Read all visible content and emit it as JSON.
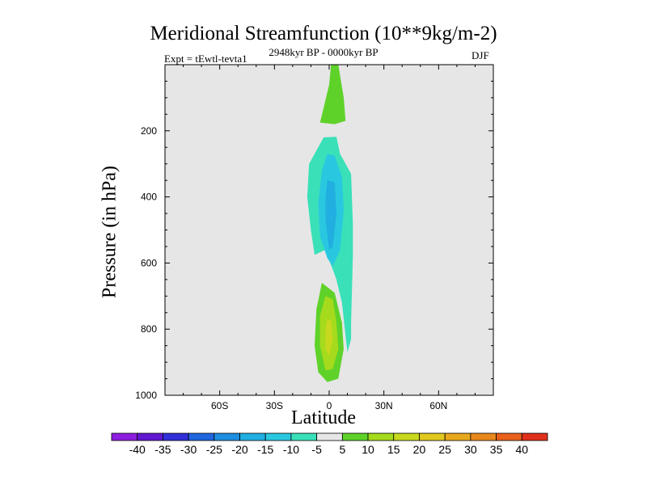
{
  "chart_data": {
    "type": "contour",
    "title": "Meridional Streamfunction (10**9kg/m-2)",
    "subtitle_left": "Expt = tEwtl-tevta1",
    "subtitle_center": "2948kyr BP - 0000kyr BP",
    "subtitle_right": "DJF",
    "xlabel": "Latitude",
    "ylabel": "Pressure (in hPa)",
    "xlim": [
      -90,
      90
    ],
    "ylim": [
      0,
      1000
    ],
    "y_reversed": true,
    "xticks": [
      -60,
      -30,
      0,
      30,
      60
    ],
    "xtick_labels": [
      "60S",
      "30S",
      "0",
      "30N",
      "60N"
    ],
    "yticks": [
      200,
      400,
      600,
      800,
      1000
    ],
    "ytick_labels": [
      "200",
      "400",
      "600",
      "800",
      "1000"
    ],
    "background_color": "#e6e6e6",
    "regions": [
      {
        "name": "upper-positive",
        "level": 5,
        "color": "#5fd22a",
        "points": [
          [
            1,
            0
          ],
          [
            5,
            0
          ],
          [
            8,
            100
          ],
          [
            9,
            170
          ],
          [
            3,
            180
          ],
          [
            -5,
            175
          ],
          [
            -3,
            130
          ],
          [
            0,
            60
          ]
        ]
      },
      {
        "name": "mid-negative-outer",
        "level": -5,
        "color": "#3ae0b8",
        "points": [
          [
            -3,
            220
          ],
          [
            4,
            218
          ],
          [
            6,
            270
          ],
          [
            12,
            330
          ],
          [
            13,
            480
          ],
          [
            13,
            580
          ],
          [
            12,
            780
          ],
          [
            12,
            830
          ],
          [
            10,
            870
          ],
          [
            9,
            820
          ],
          [
            7,
            720
          ],
          [
            4,
            650
          ],
          [
            -2,
            560
          ],
          [
            -8,
            575
          ],
          [
            -10,
            500
          ],
          [
            -12,
            400
          ],
          [
            -11,
            300
          ],
          [
            -7,
            260
          ]
        ]
      },
      {
        "name": "mid-negative-mid",
        "level": -10,
        "color": "#29c8e0",
        "points": [
          [
            -1,
            270
          ],
          [
            3,
            275
          ],
          [
            7,
            340
          ],
          [
            8,
            440
          ],
          [
            6,
            560
          ],
          [
            2,
            610
          ],
          [
            -1,
            585
          ],
          [
            -5,
            520
          ],
          [
            -6,
            420
          ],
          [
            -4,
            320
          ]
        ]
      },
      {
        "name": "mid-negative-core",
        "level": -15,
        "color": "#21aee0",
        "points": [
          [
            -1,
            350
          ],
          [
            3,
            355
          ],
          [
            4,
            450
          ],
          [
            2,
            550
          ],
          [
            0,
            560
          ],
          [
            -2,
            470
          ],
          [
            -2,
            400
          ]
        ]
      },
      {
        "name": "lower-positive-outer",
        "level": 5,
        "color": "#5fd22a",
        "points": [
          [
            -4,
            660
          ],
          [
            3,
            690
          ],
          [
            7,
            780
          ],
          [
            8,
            860
          ],
          [
            5,
            950
          ],
          [
            -1,
            960
          ],
          [
            -6,
            930
          ],
          [
            -8,
            850
          ],
          [
            -7,
            740
          ]
        ]
      },
      {
        "name": "lower-positive-inner",
        "level": 10,
        "color": "#a5db1c",
        "points": [
          [
            -2,
            700
          ],
          [
            2,
            710
          ],
          [
            4,
            780
          ],
          [
            5,
            860
          ],
          [
            2,
            920
          ],
          [
            -2,
            925
          ],
          [
            -5,
            850
          ],
          [
            -5,
            760
          ]
        ]
      },
      {
        "name": "lower-positive-core",
        "level": 15,
        "color": "#c8d81e",
        "points": [
          [
            -1,
            770
          ],
          [
            1,
            775
          ],
          [
            2,
            830
          ],
          [
            0,
            880
          ],
          [
            -2,
            860
          ],
          [
            -2,
            800
          ]
        ]
      }
    ],
    "colorbar": {
      "levels": [
        -40,
        -35,
        -30,
        -25,
        -20,
        -15,
        -10,
        -5,
        5,
        10,
        15,
        20,
        25,
        30,
        35,
        40
      ],
      "labels": [
        "-40",
        "-35",
        "-30",
        "-25",
        "-20",
        "-15",
        "-10",
        "-5",
        "5",
        "10",
        "15",
        "20",
        "25",
        "30",
        "35",
        "40"
      ],
      "colors": [
        "#8d1ee0",
        "#6018d0",
        "#3130d8",
        "#2066e0",
        "#1e8ee0",
        "#21aee0",
        "#29c8e0",
        "#3ae0b8",
        "#e6e6e6",
        "#5fd22a",
        "#a5db1c",
        "#c8d81e",
        "#e0c81e",
        "#e8a81e",
        "#e8881c",
        "#e8601c",
        "#e0301c"
      ]
    }
  }
}
